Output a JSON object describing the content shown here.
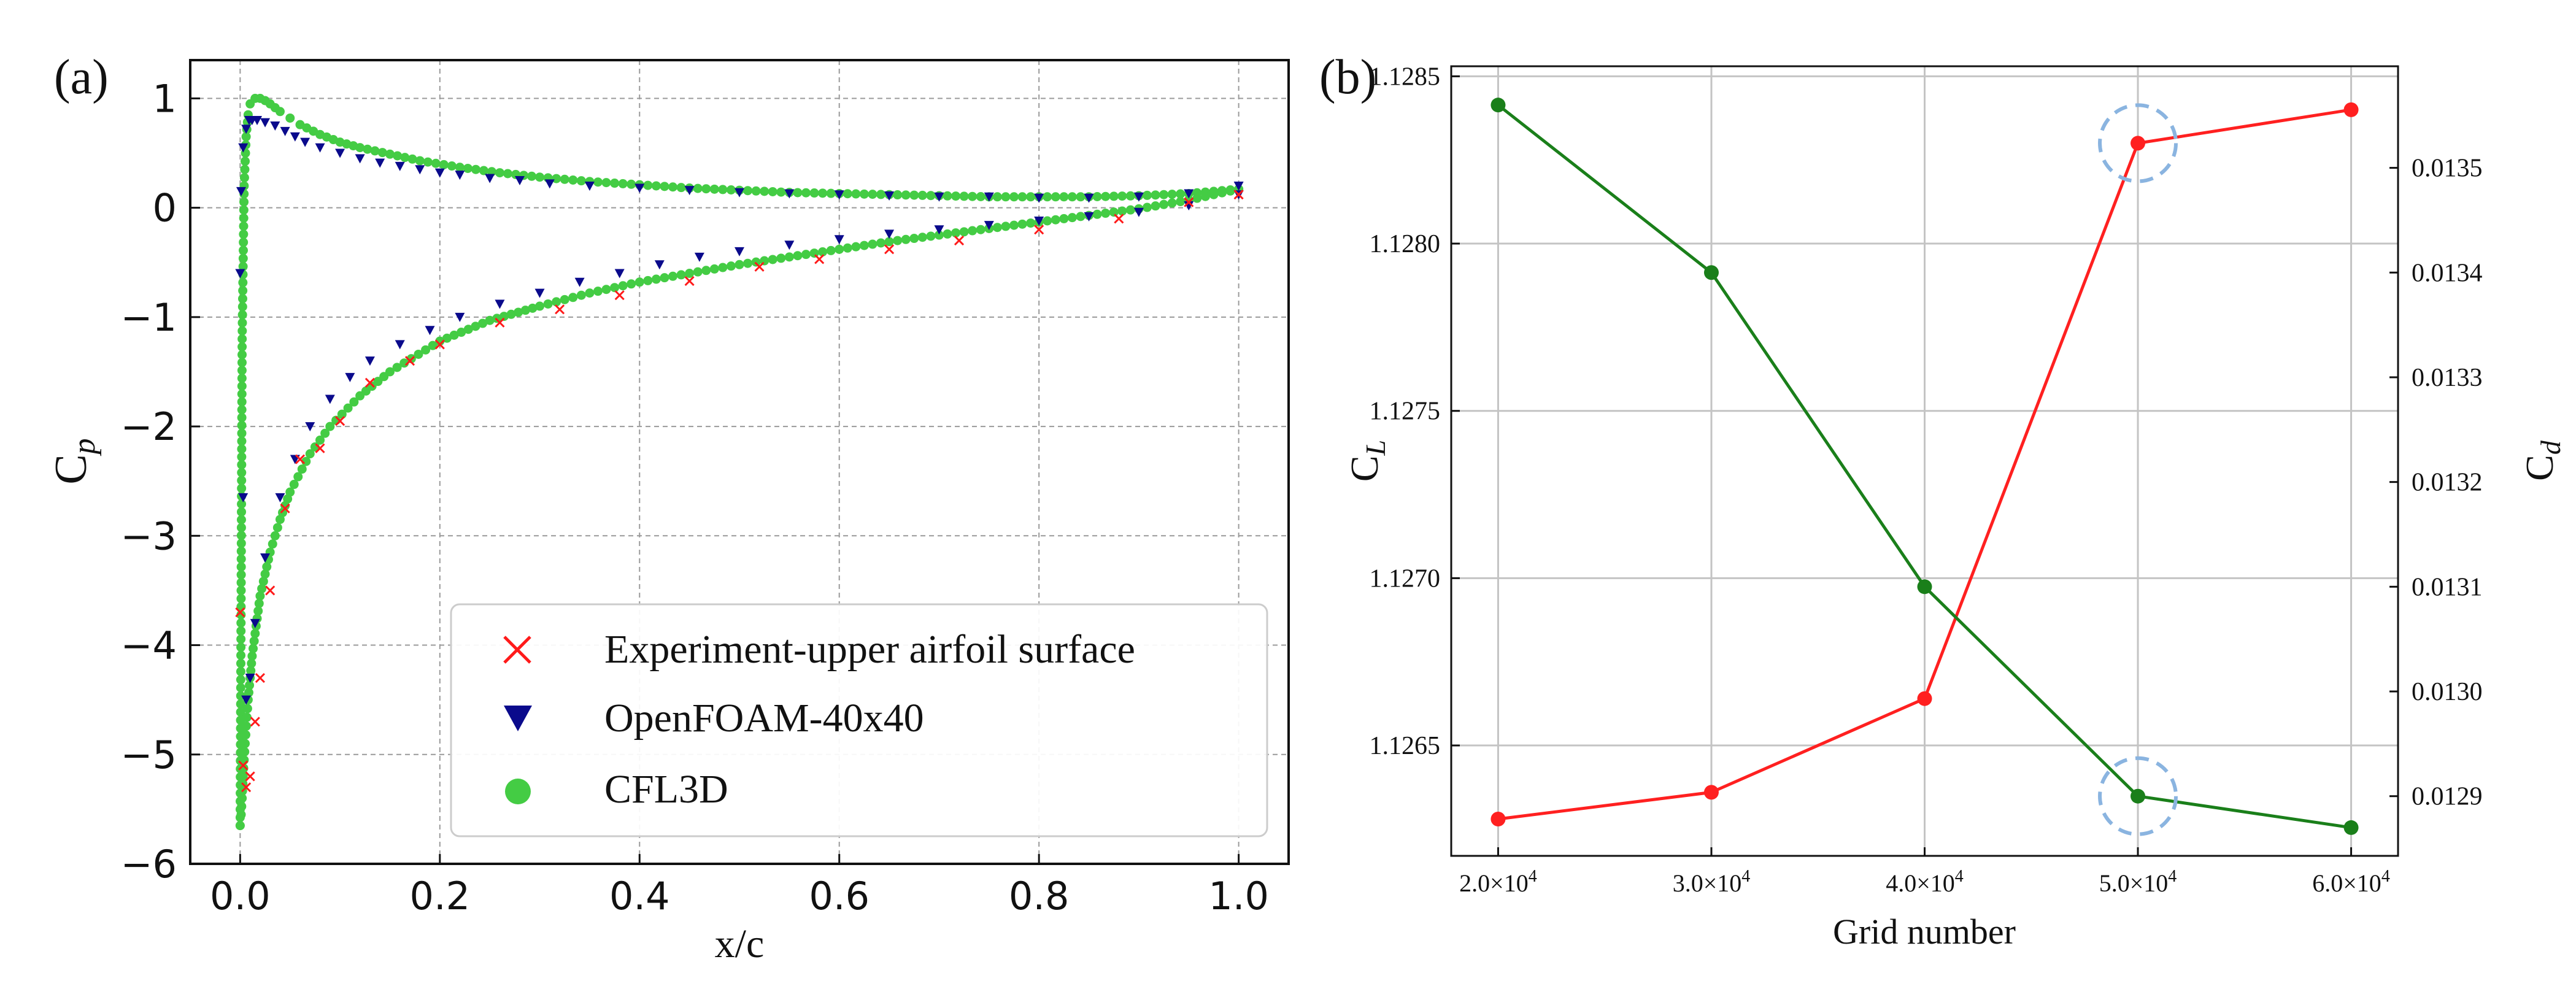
{
  "chart_data": [
    {
      "type": "scatter",
      "panel_label": "(a)",
      "xlabel": "x/c",
      "ylabel_main": "C",
      "ylabel_sub": "p",
      "xlim": [
        -0.05,
        1.05
      ],
      "ylim": [
        -6.0,
        1.35
      ],
      "grid": true,
      "xticks": [
        {
          "v": 0.0,
          "label": "0.0"
        },
        {
          "v": 0.2,
          "label": "0.2"
        },
        {
          "v": 0.4,
          "label": "0.4"
        },
        {
          "v": 0.6,
          "label": "0.6"
        },
        {
          "v": 0.8,
          "label": "0.8"
        },
        {
          "v": 1.0,
          "label": "1.0"
        }
      ],
      "yticks": [
        {
          "v": 1,
          "label": "1"
        },
        {
          "v": 0,
          "label": "0"
        },
        {
          "v": -1,
          "label": "−1"
        },
        {
          "v": -2,
          "label": "−2"
        },
        {
          "v": -3,
          "label": "−3"
        },
        {
          "v": -4,
          "label": "−4"
        },
        {
          "v": -5,
          "label": "−5"
        },
        {
          "v": -6,
          "label": "−6"
        }
      ],
      "legend_position": "bottom-right",
      "series": [
        {
          "name": "Experiment-upper airfoil surface",
          "marker": "x",
          "color": "#ff1a1a",
          "x": [
            0.0,
            0.003,
            0.006,
            0.01,
            0.015,
            0.02,
            0.03,
            0.045,
            0.06,
            0.08,
            0.1,
            0.13,
            0.17,
            0.2,
            0.26,
            0.32,
            0.38,
            0.45,
            0.52,
            0.58,
            0.65,
            0.72,
            0.8,
            0.88,
            0.95,
            1.0
          ],
          "y": [
            -3.7,
            -5.1,
            -5.3,
            -5.2,
            -4.7,
            -4.3,
            -3.5,
            -2.75,
            -2.3,
            -2.2,
            -1.95,
            -1.6,
            -1.4,
            -1.25,
            -1.05,
            -0.93,
            -0.8,
            -0.67,
            -0.54,
            -0.47,
            -0.38,
            -0.3,
            -0.2,
            -0.1,
            0.05,
            0.12
          ]
        },
        {
          "name": "OpenFOAM-40x40",
          "marker": "triangle-down",
          "color": "#0a0a8c",
          "x": [
            0.0,
            0.001,
            0.003,
            0.006,
            0.009,
            0.012,
            0.017,
            0.025,
            0.035,
            0.045,
            0.055,
            0.065,
            0.08,
            0.1,
            0.12,
            0.14,
            0.16,
            0.18,
            0.2,
            0.22,
            0.25,
            0.28,
            0.31,
            0.35,
            0.4,
            0.45,
            0.5,
            0.55,
            0.6,
            0.65,
            0.7,
            0.75,
            0.8,
            0.85,
            0.9,
            0.95,
            1.0,
            0.003,
            0.006,
            0.01,
            0.015,
            0.025,
            0.04,
            0.055,
            0.07,
            0.09,
            0.11,
            0.13,
            0.16,
            0.19,
            0.22,
            0.26,
            0.3,
            0.34,
            0.38,
            0.42,
            0.46,
            0.5,
            0.55,
            0.6,
            0.65,
            0.7,
            0.75,
            0.8,
            0.85,
            0.9,
            0.95,
            1.0
          ],
          "y": [
            -0.6,
            0.15,
            0.55,
            0.72,
            0.8,
            0.8,
            0.8,
            0.78,
            0.75,
            0.7,
            0.65,
            0.6,
            0.55,
            0.5,
            0.45,
            0.41,
            0.38,
            0.35,
            0.32,
            0.3,
            0.27,
            0.25,
            0.22,
            0.2,
            0.18,
            0.16,
            0.14,
            0.13,
            0.12,
            0.11,
            0.1,
            0.1,
            0.09,
            0.09,
            0.1,
            0.13,
            0.2,
            -2.65,
            -4.5,
            -4.3,
            -3.8,
            -3.2,
            -2.65,
            -2.3,
            -2.0,
            -1.75,
            -1.55,
            -1.4,
            -1.25,
            -1.12,
            -1.0,
            -0.88,
            -0.78,
            -0.68,
            -0.6,
            -0.52,
            -0.45,
            -0.4,
            -0.34,
            -0.29,
            -0.24,
            -0.2,
            -0.16,
            -0.12,
            -0.08,
            -0.04,
            0.02,
            0.12
          ]
        },
        {
          "name": "CFL3D",
          "marker": "circle",
          "color": "#44cc44",
          "upper_x": [
            0.0,
            0.001,
            0.002,
            0.004,
            0.006,
            0.008,
            0.01,
            0.015,
            0.02,
            0.025,
            0.03,
            0.04,
            0.05,
            0.06,
            0.08,
            0.1,
            0.12,
            0.15,
            0.18,
            0.22,
            0.26,
            0.3,
            0.35,
            0.4,
            0.45,
            0.5,
            0.55,
            0.6,
            0.65,
            0.7,
            0.75,
            0.8,
            0.85,
            0.9,
            0.95,
            1.0
          ],
          "upper_y": [
            -5.65,
            -3.5,
            -1.2,
            0.2,
            0.65,
            0.85,
            0.95,
            1.0,
            1.0,
            0.98,
            0.95,
            0.88,
            0.82,
            0.76,
            0.67,
            0.6,
            0.55,
            0.49,
            0.43,
            0.37,
            0.32,
            0.28,
            0.24,
            0.21,
            0.18,
            0.16,
            0.14,
            0.13,
            0.12,
            0.11,
            0.1,
            0.1,
            0.1,
            0.11,
            0.13,
            0.17
          ],
          "lower_x": [
            0.0,
            0.001,
            0.002,
            0.003,
            0.005,
            0.008,
            0.012,
            0.02,
            0.03,
            0.04,
            0.05,
            0.07,
            0.09,
            0.12,
            0.15,
            0.2,
            0.25,
            0.3,
            0.35,
            0.4,
            0.45,
            0.5,
            0.55,
            0.6,
            0.65,
            0.7,
            0.75,
            0.8,
            0.85,
            0.9,
            0.95,
            1.0
          ],
          "lower_y": [
            -5.65,
            -5.55,
            -5.4,
            -5.2,
            -4.9,
            -4.5,
            -4.1,
            -3.55,
            -3.15,
            -2.85,
            -2.6,
            -2.25,
            -2.0,
            -1.72,
            -1.5,
            -1.22,
            -1.03,
            -0.9,
            -0.78,
            -0.68,
            -0.6,
            -0.52,
            -0.45,
            -0.38,
            -0.31,
            -0.25,
            -0.19,
            -0.13,
            -0.07,
            -0.01,
            0.07,
            0.17
          ]
        }
      ]
    },
    {
      "type": "line",
      "panel_label": "(b)",
      "xlabel": "Grid number",
      "ylabel_left_main": "C",
      "ylabel_left_sub": "L",
      "ylabel_right_main": "C",
      "ylabel_right_sub": "d",
      "grid": true,
      "categories": [
        "2.0×10",
        "3.0×10",
        "4.0×10",
        "5.0×10",
        "6.0×10"
      ],
      "category_exponent": "4",
      "x": [
        20000,
        30000,
        40000,
        50000,
        60000
      ],
      "xlim": [
        17800,
        62200
      ],
      "left_axis": {
        "ylim": [
          1.12617,
          1.12853
        ],
        "ticks": [
          {
            "v": 1.1265,
            "label": "1.1265"
          },
          {
            "v": 1.127,
            "label": "1.1270"
          },
          {
            "v": 1.1275,
            "label": "1.1275"
          },
          {
            "v": 1.128,
            "label": "1.1280"
          },
          {
            "v": 1.1285,
            "label": "1.1285"
          }
        ]
      },
      "right_axis": {
        "ylim": [
          0.012843,
          0.013597
        ],
        "ticks": [
          {
            "v": 0.0129,
            "label": "0.0129"
          },
          {
            "v": 0.013,
            "label": "0.0130"
          },
          {
            "v": 0.0131,
            "label": "0.0131"
          },
          {
            "v": 0.0132,
            "label": "0.0132"
          },
          {
            "v": 0.0133,
            "label": "0.0133"
          },
          {
            "v": 0.0134,
            "label": "0.0134"
          },
          {
            "v": 0.0135,
            "label": "0.0135"
          }
        ]
      },
      "series": [
        {
          "name": "C_L",
          "axis": "left",
          "color": "#ff2020",
          "values": [
            1.12628,
            1.12636,
            1.12664,
            1.1283,
            1.1284
          ]
        },
        {
          "name": "C_d",
          "axis": "right",
          "color": "#1a7f1a",
          "values": [
            0.01356,
            0.0134,
            0.0131,
            0.0129,
            0.01287
          ]
        }
      ],
      "annotations": [
        {
          "type": "dashed-circle",
          "series": "C_L",
          "x": 50000,
          "color": "#8ab4e0"
        },
        {
          "type": "dashed-circle",
          "series": "C_d",
          "x": 50000,
          "color": "#8ab4e0"
        }
      ]
    }
  ]
}
